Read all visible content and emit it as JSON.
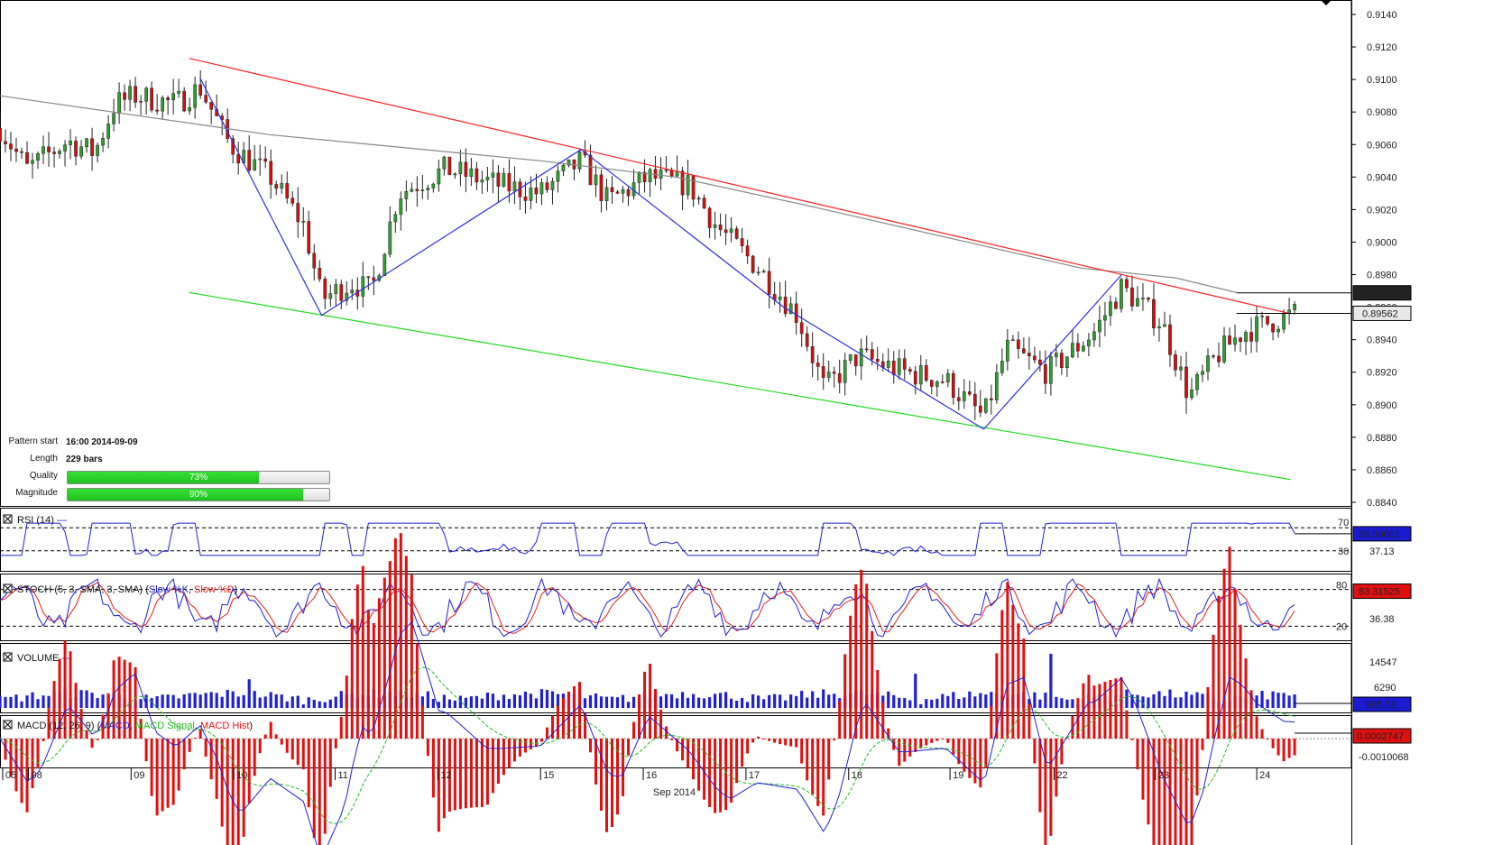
{
  "chart_data": {
    "type": "candlestick",
    "instrument_timeframe": "H1",
    "price_axis": {
      "min": 0.884,
      "max": 0.914,
      "ticks": [
        "0.9140",
        "0.9120",
        "0.9100",
        "0.9080",
        "0.9060",
        "0.9040",
        "0.9020",
        "0.9000",
        "0.8980",
        "0.8960",
        "0.8940",
        "0.8920",
        "0.8900",
        "0.8880",
        "0.8860",
        "0.8840"
      ]
    },
    "price_tags": [
      {
        "label": "0.89688",
        "value": 0.89688,
        "style": "dark"
      },
      {
        "label": "0.89562",
        "value": 0.89562,
        "style": "light"
      }
    ],
    "x_axis": {
      "labels": [
        "05",
        "08",
        "09",
        "10",
        "11",
        "12",
        "15",
        "16",
        "17",
        "18",
        "19",
        "22",
        "23",
        "24"
      ],
      "month_label": "Sep 2014"
    },
    "moving_average": {
      "color": "#888888",
      "points": [
        [
          0.0,
          0.909
        ],
        [
          0.1,
          0.9078
        ],
        [
          0.2,
          0.9066
        ],
        [
          0.3,
          0.9058
        ],
        [
          0.4,
          0.905
        ],
        [
          0.5,
          0.904
        ],
        [
          0.6,
          0.9022
        ],
        [
          0.7,
          0.9003
        ],
        [
          0.8,
          0.8984
        ],
        [
          0.87,
          0.8978
        ],
        [
          0.915,
          0.8969
        ]
      ]
    },
    "channel": {
      "upper": {
        "color": "#ff2020",
        "from": [
          0.14,
          0.9113
        ],
        "to": [
          0.955,
          0.8956
        ]
      },
      "lower": {
        "color": "#20dd20",
        "from": [
          0.14,
          0.8969
        ],
        "to": [
          0.955,
          0.8854
        ]
      }
    },
    "zigzag": {
      "color": "#3030e0",
      "points": [
        [
          0.148,
          0.9101
        ],
        [
          0.238,
          0.8955
        ],
        [
          0.43,
          0.9057
        ],
        [
          0.58,
          0.896
        ],
        [
          0.728,
          0.8885
        ],
        [
          0.83,
          0.898
        ]
      ]
    },
    "pattern_info": {
      "pattern_start_label": "Pattern start",
      "pattern_start": "16:00 2014-09-09",
      "length_label": "Length",
      "length": "229 bars",
      "quality_label": "Quality",
      "quality": "73%",
      "quality_value": 0.73,
      "magnitude_label": "Magnitude",
      "magnitude": "90%",
      "magnitude_value": 0.9
    },
    "rsi": {
      "title": "RSI (14)",
      "levels": [
        "70",
        "30"
      ],
      "current_label": "59.50601",
      "scale_label": "37.13"
    },
    "stoch": {
      "title_main": "STOCH (5, 3, SMA, 3, SMA)",
      "title_k": "Slow %K",
      "title_d": "Slow %D",
      "levels": [
        "80",
        "20"
      ],
      "current_label": "83.31525",
      "scale_label": "36.38"
    },
    "volume": {
      "title": "VOLUME",
      "ticks": [
        "14547",
        "6290"
      ],
      "current_label": "905.76"
    },
    "macd": {
      "title_main": "MACD (12, 26, 9)",
      "title_line": "MACD",
      "title_signal": "MACD Signal",
      "title_hist": "MACD Hist",
      "current_label": "0.0002747",
      "scale_label": "-0.0010068"
    },
    "colors": {
      "up": "#2fa02f",
      "down": "#d01010",
      "rsi": "#2020d0",
      "stoch_k": "#2020d0",
      "stoch_d": "#e02020",
      "volume": "#2020d0",
      "macd": "#2020d0",
      "signal": "#22bb22",
      "hist": "#e01010"
    }
  }
}
